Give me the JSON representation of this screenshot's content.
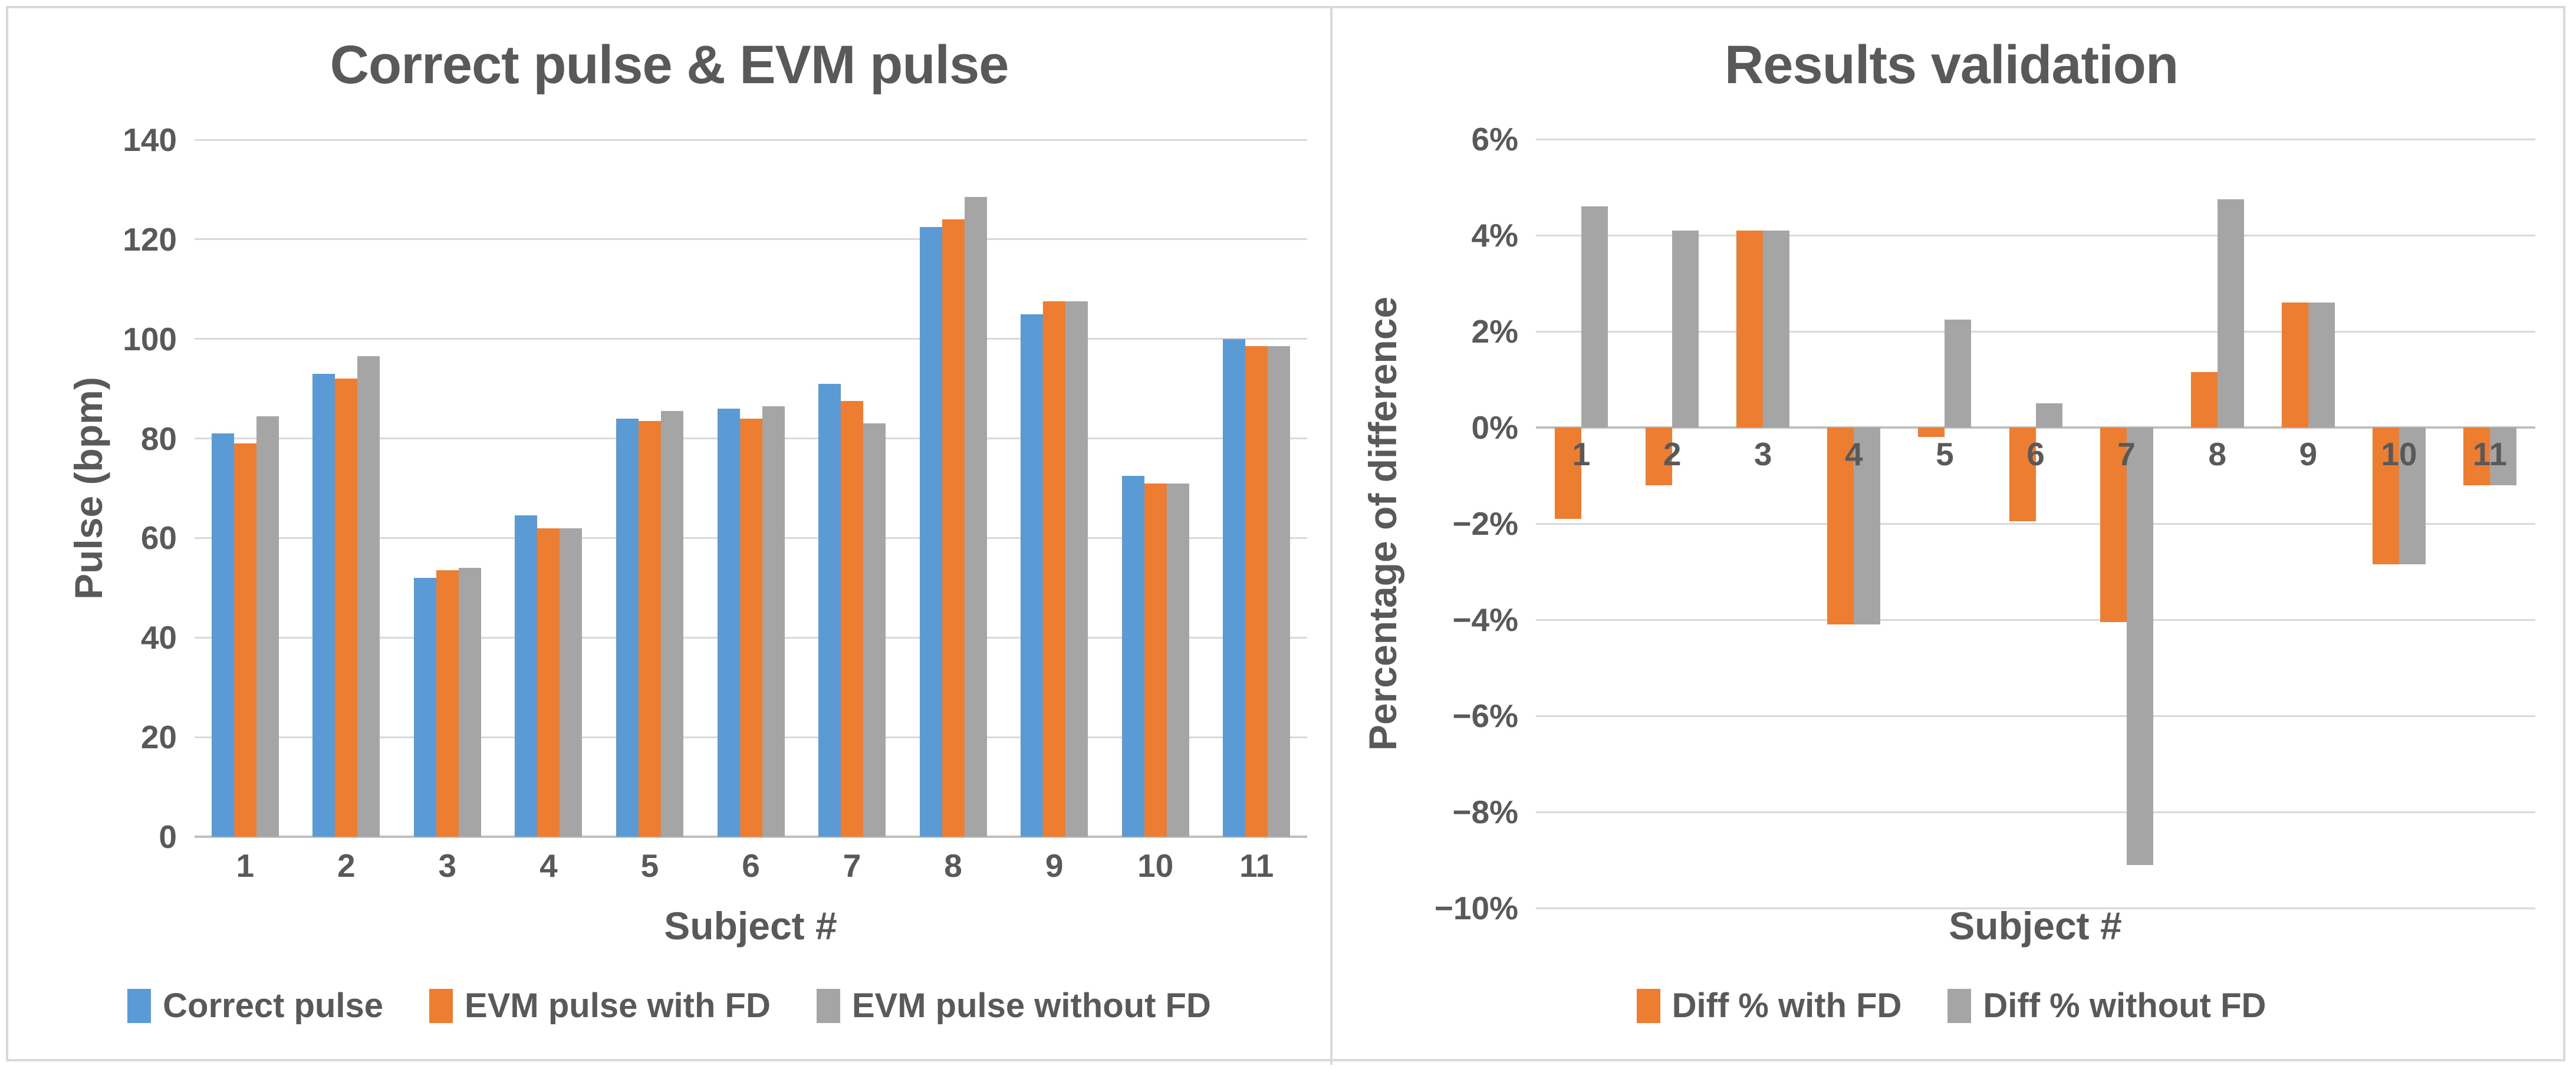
{
  "figure": {
    "background": "#ffffff",
    "border_color": "#d9d9d9",
    "text_color": "#595959",
    "gridline_color": "#d9d9d9",
    "zero_axis_color": "#bfbfbf"
  },
  "chart_data": [
    {
      "type": "bar",
      "title": "Correct pulse & EVM pulse",
      "x_axis_title": "Subject #",
      "y_axis_title": "Pulse (bpm)",
      "categories": [
        "1",
        "2",
        "3",
        "4",
        "5",
        "6",
        "7",
        "8",
        "9",
        "10",
        "11"
      ],
      "ylim": [
        0,
        140
      ],
      "grid": true,
      "legend_position": "bottom",
      "y_ticks": [
        {
          "value": 140,
          "label": "140"
        },
        {
          "value": 120,
          "label": "120"
        },
        {
          "value": 100,
          "label": "100"
        },
        {
          "value": 80,
          "label": "80"
        },
        {
          "value": 60,
          "label": "60"
        },
        {
          "value": 40,
          "label": "40"
        },
        {
          "value": 20,
          "label": "20"
        },
        {
          "value": 0,
          "label": "0"
        }
      ],
      "series": [
        {
          "name": "Correct pulse",
          "color": "#5B9BD5",
          "values": [
            81,
            93,
            52,
            64.5,
            84,
            86,
            91,
            122.5,
            105,
            72.5,
            100
          ]
        },
        {
          "name": "EVM pulse with FD",
          "color": "#ED7D31",
          "values": [
            79,
            92,
            53.5,
            62,
            83.5,
            84,
            87.5,
            124,
            107.5,
            71,
            98.5
          ]
        },
        {
          "name": "EVM pulse without FD",
          "color": "#A5A5A5",
          "values": [
            84.5,
            96.5,
            54,
            62,
            85.5,
            86.5,
            83,
            128.5,
            107.5,
            71,
            98.5
          ]
        }
      ]
    },
    {
      "type": "bar",
      "title": "Results validation",
      "x_axis_title": "Subject #",
      "y_axis_title": "Percentage of difference",
      "categories": [
        "1",
        "2",
        "3",
        "4",
        "5",
        "6",
        "7",
        "8",
        "9",
        "10",
        "11"
      ],
      "ylim": [
        -10,
        6
      ],
      "grid": true,
      "legend_position": "bottom",
      "y_ticks": [
        {
          "value": 6,
          "label": "6%"
        },
        {
          "value": 4,
          "label": "4%"
        },
        {
          "value": 2,
          "label": "2%"
        },
        {
          "value": 0,
          "label": "0%"
        },
        {
          "value": -2,
          "label": "−2%"
        },
        {
          "value": -4,
          "label": "−4%"
        },
        {
          "value": -6,
          "label": "−6%"
        },
        {
          "value": -8,
          "label": "−8%"
        },
        {
          "value": -10,
          "label": "−10%"
        }
      ],
      "series": [
        {
          "name": "Diff % with FD",
          "color": "#ED7D31",
          "values": [
            -1.9,
            -1.2,
            4.1,
            -4.1,
            -0.2,
            -1.95,
            -4.05,
            1.15,
            2.6,
            -2.85,
            -1.2
          ]
        },
        {
          "name": "Diff % without FD",
          "color": "#A5A5A5",
          "values": [
            4.6,
            4.1,
            4.1,
            -4.1,
            2.25,
            0.5,
            -9.1,
            4.75,
            2.6,
            -2.85,
            -1.2
          ]
        }
      ]
    }
  ]
}
